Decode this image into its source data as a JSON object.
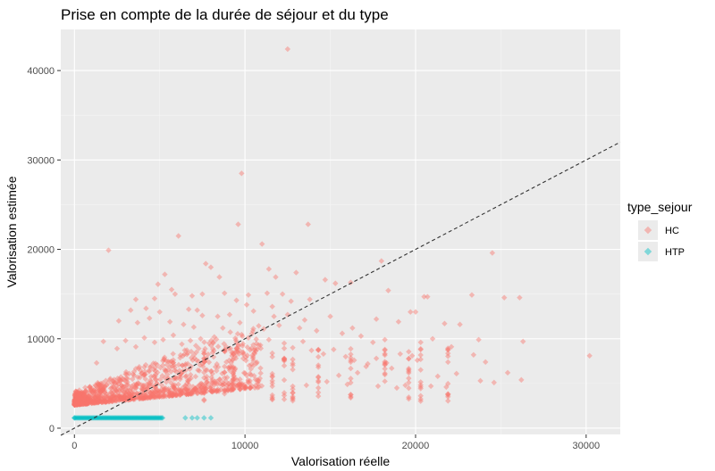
{
  "chart_data": {
    "type": "scatter",
    "title": "Prise en compte de la durée de séjour et du type",
    "xlabel": "Valorisation réelle",
    "ylabel": "Valorisation estimée",
    "xlim": [
      -800,
      32000
    ],
    "ylim": [
      -700,
      44600
    ],
    "x_ticks": [
      0,
      10000,
      20000,
      30000
    ],
    "x_tick_labels": [
      "0",
      "10000",
      "20000",
      "30000"
    ],
    "y_ticks": [
      0,
      10000,
      20000,
      30000,
      40000
    ],
    "y_tick_labels": [
      "0",
      "10000",
      "20000",
      "30000",
      "40000"
    ],
    "grid": true,
    "background": "#ebebeb",
    "reference_line": {
      "type": "identity",
      "slope": 1,
      "intercept": 0,
      "style": "dashed",
      "color": "#333333"
    },
    "legend": {
      "title": "type_sejour",
      "placement": "right",
      "entries": [
        {
          "label": "HC",
          "color": "#f8766d"
        },
        {
          "label": "HTP",
          "color": "#00bfc4"
        }
      ]
    },
    "series": [
      {
        "name": "HC",
        "color": "#f8766d",
        "points": [
          [
            12500,
            42400
          ],
          [
            9800,
            28500
          ],
          [
            9600,
            22800
          ],
          [
            13700,
            22800
          ],
          [
            2000,
            19900
          ],
          [
            6100,
            21500
          ],
          [
            11000,
            20600
          ],
          [
            24500,
            19600
          ],
          [
            18000,
            18700
          ],
          [
            7700,
            18400
          ],
          [
            8000,
            18000
          ],
          [
            11400,
            17800
          ],
          [
            13000,
            17400
          ],
          [
            5300,
            17200
          ],
          [
            8500,
            16900
          ],
          [
            11800,
            16900
          ],
          [
            18400,
            15400
          ],
          [
            25200,
            14600
          ],
          [
            26100,
            14600
          ],
          [
            20500,
            14700
          ],
          [
            20700,
            14700
          ],
          [
            23300,
            14900
          ],
          [
            4900,
            16100
          ],
          [
            5700,
            15500
          ],
          [
            5900,
            15000
          ],
          [
            6900,
            14800
          ],
          [
            7500,
            15000
          ],
          [
            8800,
            15100
          ],
          [
            10200,
            14900
          ],
          [
            11300,
            15100
          ],
          [
            12200,
            15000
          ],
          [
            3600,
            14400
          ],
          [
            4700,
            14500
          ],
          [
            9500,
            14300
          ],
          [
            10100,
            13800
          ],
          [
            11600,
            13600
          ],
          [
            12700,
            14200
          ],
          [
            13800,
            14400
          ],
          [
            14700,
            16600
          ],
          [
            15300,
            16200
          ],
          [
            16200,
            16300
          ],
          [
            3300,
            13200
          ],
          [
            4200,
            13400
          ],
          [
            5000,
            13000
          ],
          [
            6700,
            13300
          ],
          [
            7200,
            13200
          ],
          [
            7500,
            12600
          ],
          [
            8400,
            12500
          ],
          [
            9100,
            12700
          ],
          [
            10500,
            13100
          ],
          [
            11700,
            12500
          ],
          [
            12500,
            12700
          ],
          [
            13500,
            12100
          ],
          [
            15000,
            12500
          ],
          [
            17700,
            12200
          ],
          [
            19000,
            11900
          ],
          [
            19700,
            13000
          ],
          [
            20000,
            13000
          ],
          [
            21700,
            11700
          ],
          [
            22600,
            11600
          ],
          [
            16300,
            11200
          ],
          [
            26300,
            9700
          ],
          [
            30200,
            8100
          ],
          [
            26200,
            5400
          ],
          [
            21000,
            10000
          ],
          [
            20300,
            9600
          ],
          [
            23700,
            9900
          ],
          [
            2600,
            12000
          ],
          [
            3700,
            11800
          ],
          [
            4400,
            12300
          ],
          [
            5600,
            11900
          ],
          [
            6400,
            11600
          ],
          [
            7000,
            11300
          ],
          [
            8700,
            11200
          ],
          [
            9700,
            11800
          ],
          [
            11100,
            11100
          ],
          [
            12000,
            11500
          ],
          [
            13200,
            11200
          ],
          [
            14200,
            10900
          ],
          [
            15700,
            10600
          ],
          [
            16800,
            10300
          ],
          [
            17500,
            9600
          ],
          [
            18200,
            9900
          ],
          [
            19100,
            8300
          ],
          [
            19800,
            8100
          ],
          [
            20100,
            7600
          ],
          [
            22100,
            9100
          ],
          [
            23400,
            8200
          ],
          [
            24100,
            7400
          ],
          [
            18600,
            6700
          ],
          [
            17100,
            6900
          ],
          [
            16600,
            6200
          ],
          [
            15500,
            5900
          ],
          [
            14800,
            5200
          ],
          [
            22400,
            6100
          ],
          [
            21300,
            5800
          ],
          [
            23800,
            5300
          ],
          [
            24600,
            5100
          ],
          [
            19400,
            4800
          ],
          [
            20900,
            4700
          ],
          [
            21800,
            4600
          ],
          [
            25400,
            6200
          ],
          [
            16000,
            4900
          ],
          [
            17800,
            4700
          ],
          [
            18900,
            4500
          ],
          [
            14300,
            4500
          ],
          [
            13600,
            4800
          ],
          [
            1300,
            7300
          ],
          [
            1700,
            9700
          ],
          [
            2500,
            8900
          ],
          [
            3000,
            9800
          ],
          [
            3600,
            9100
          ],
          [
            4100,
            10100
          ],
          [
            4700,
            9600
          ],
          [
            5200,
            9900
          ],
          [
            5800,
            10400
          ],
          [
            6300,
            9400
          ],
          [
            6800,
            9800
          ],
          [
            7400,
            10000
          ],
          [
            7900,
            9500
          ],
          [
            8200,
            10200
          ],
          [
            8900,
            9100
          ],
          [
            9500,
            9600
          ],
          [
            10200,
            10100
          ],
          [
            10800,
            9300
          ],
          [
            11400,
            9900
          ],
          [
            12300,
            9500
          ],
          [
            12800,
            9000
          ],
          [
            13400,
            9700
          ],
          [
            13900,
            8700
          ],
          [
            14600,
            8300
          ],
          [
            15200,
            8800
          ],
          [
            15900,
            8000
          ],
          [
            16400,
            7600
          ],
          [
            17200,
            7200
          ],
          [
            17700,
            7800
          ],
          [
            18300,
            7300
          ]
        ]
      },
      {
        "name": "HTP",
        "color": "#00bfc4",
        "points": [
          [
            0,
            1150
          ],
          [
            6500,
            1150
          ],
          [
            6900,
            1150
          ],
          [
            7200,
            1150
          ],
          [
            7600,
            1150
          ],
          [
            8000,
            1150
          ]
        ]
      }
    ]
  }
}
